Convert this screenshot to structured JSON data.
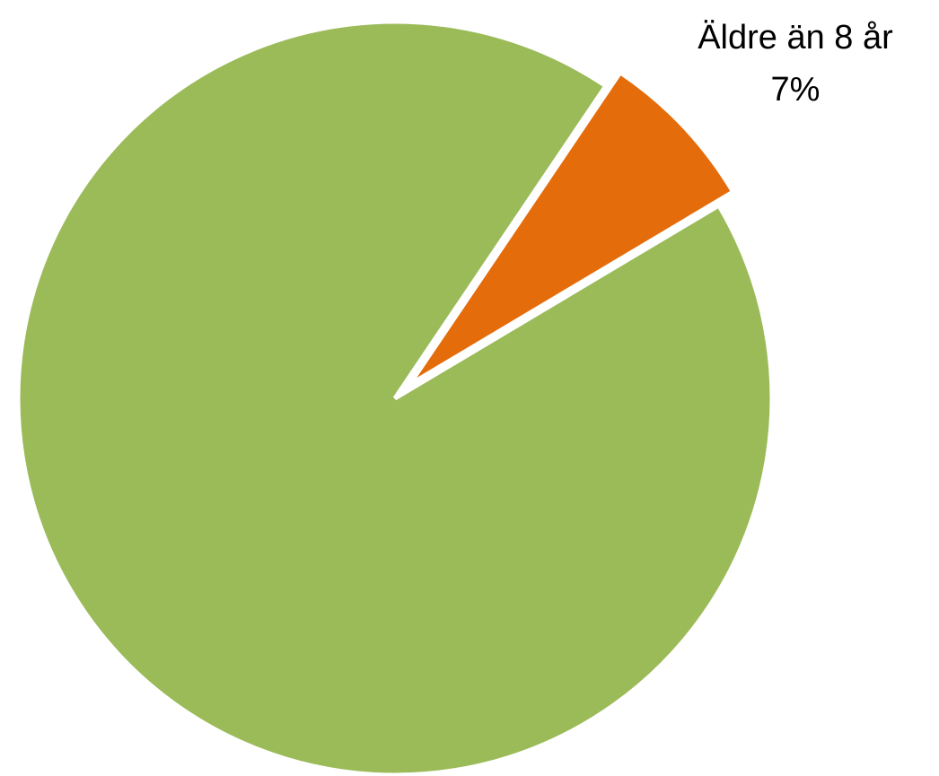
{
  "chart_data": {
    "type": "pie",
    "slices": [
      {
        "label": "Äldre än 8 år",
        "value": 7,
        "value_text": "7%",
        "color": "#E46C0A",
        "exploded": true,
        "show_label": true
      },
      {
        "label": "",
        "value": 93,
        "value_text": "",
        "color": "#9BBB59",
        "exploded": false,
        "show_label": false
      }
    ],
    "start_angle_deg": 34,
    "legend": "none"
  }
}
